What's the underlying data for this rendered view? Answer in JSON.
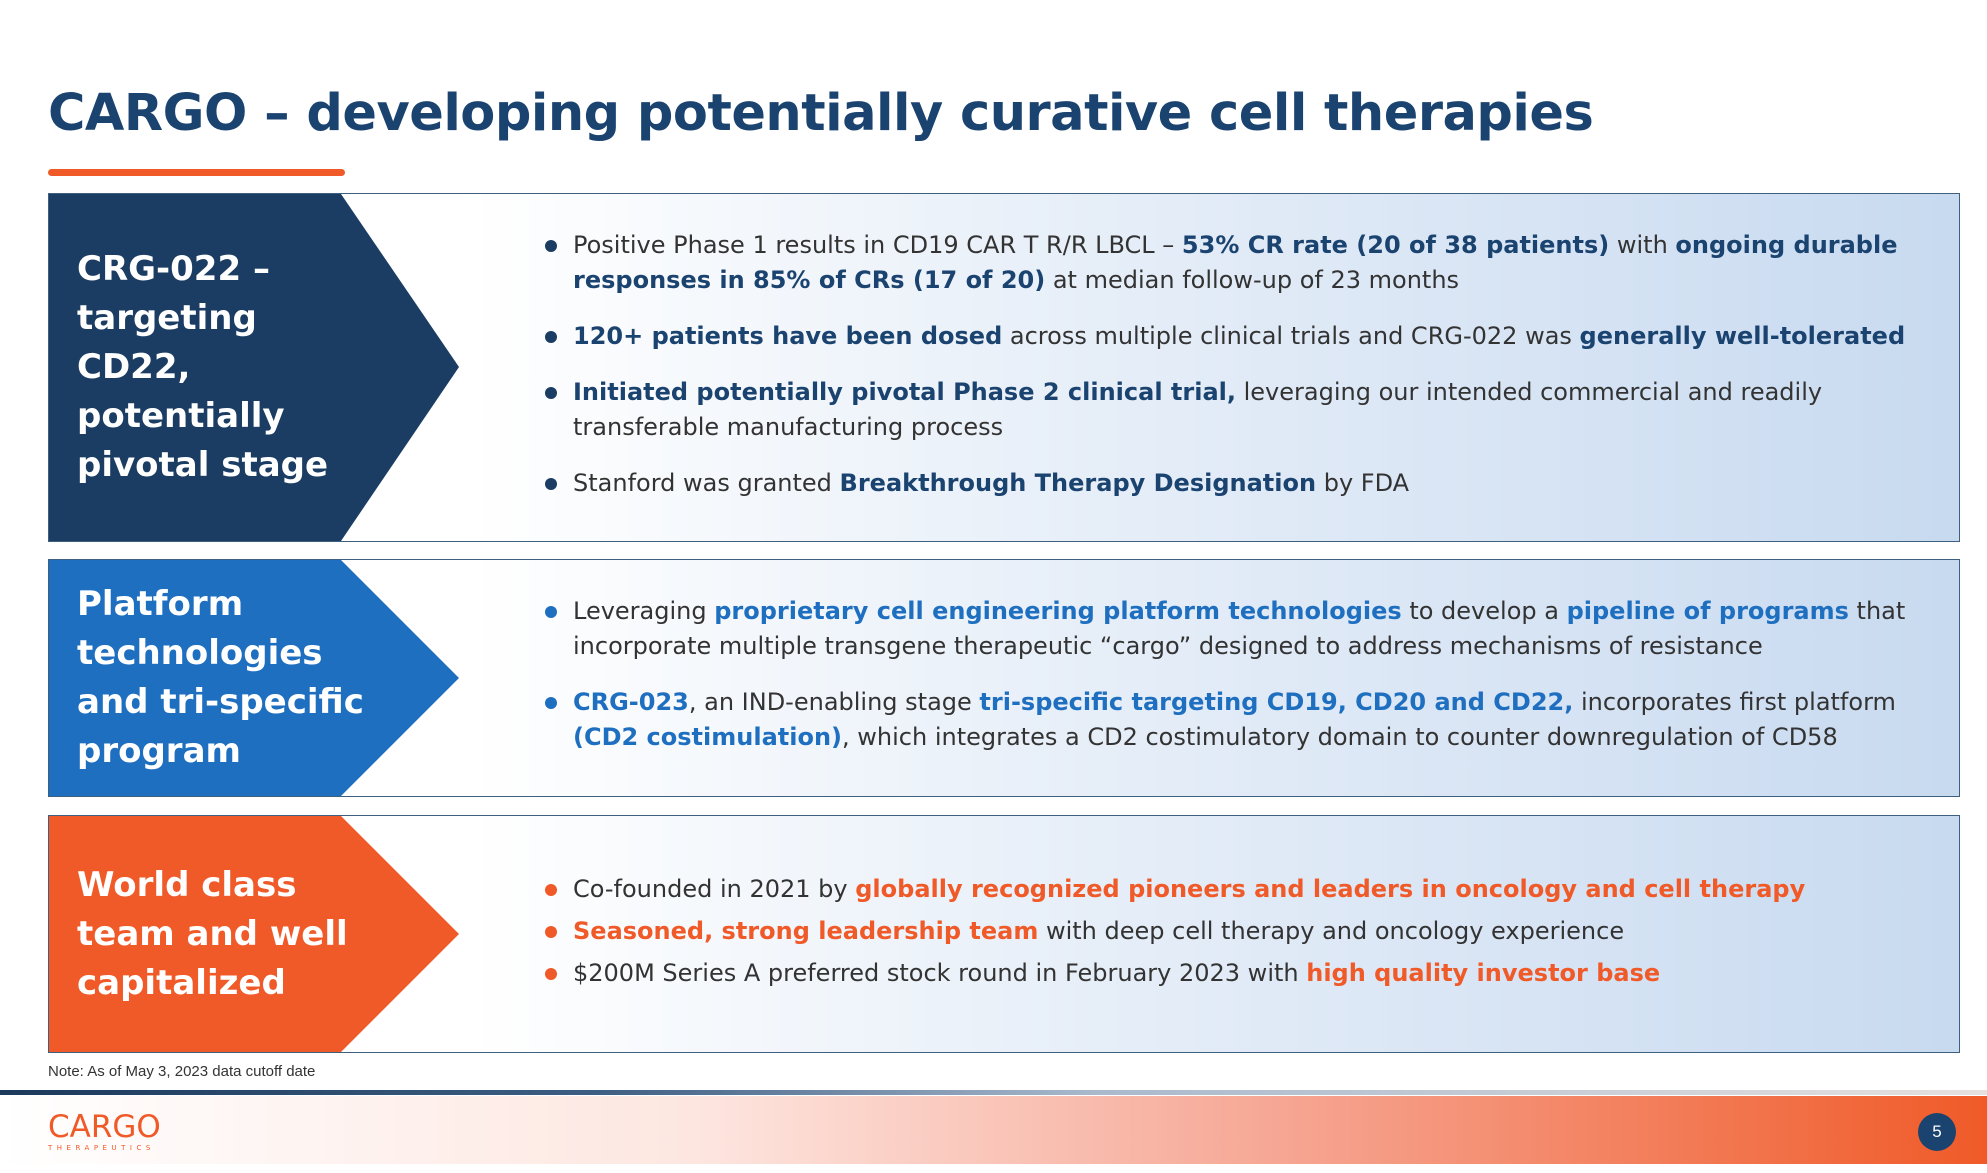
{
  "title": "CARGO – developing potentially curative cell therapies",
  "colors": {
    "navy": "#1b4370",
    "blue": "#1f6fc0",
    "orange": "#f05a28"
  },
  "sections": [
    {
      "label": "CRG-022 – targeting CD22, potentially pivotal stage",
      "bullets": [
        [
          {
            "t": "Positive Phase 1 results in CD19 CAR T R/R LBCL – ",
            "s": ""
          },
          {
            "t": "53% CR rate (20 of 38 patients)",
            "s": "dark"
          },
          {
            "t": " with ",
            "s": ""
          },
          {
            "t": "ongoing durable responses in 85% of CRs (17 of 20)",
            "s": "dark"
          },
          {
            "t": " at median follow-up of 23 months",
            "s": ""
          }
        ],
        [
          {
            "t": "120+ patients have been dosed",
            "s": "dark"
          },
          {
            "t": " across multiple clinical trials and CRG-022 was ",
            "s": ""
          },
          {
            "t": "generally well-tolerated",
            "s": "dark"
          }
        ],
        [
          {
            "t": "Initiated potentially pivotal Phase 2 clinical trial,",
            "s": "dark"
          },
          {
            "t": " leveraging our intended commercial and readily transferable manufacturing process",
            "s": ""
          }
        ],
        [
          {
            "t": "Stanford was granted ",
            "s": ""
          },
          {
            "t": "Breakthrough Therapy Designation",
            "s": "dark"
          },
          {
            "t": " by FDA",
            "s": ""
          }
        ]
      ]
    },
    {
      "label": "Platform technologies and tri-specific program",
      "bullets": [
        [
          {
            "t": "Leveraging ",
            "s": ""
          },
          {
            "t": "proprietary cell engineering platform technologies",
            "s": "blue"
          },
          {
            "t": " to develop a ",
            "s": ""
          },
          {
            "t": "pipeline of programs",
            "s": "blue"
          },
          {
            "t": " that incorporate multiple transgene therapeutic “cargo” designed to address mechanisms of resistance",
            "s": ""
          }
        ],
        [
          {
            "t": "CRG-023",
            "s": "blue"
          },
          {
            "t": ", an IND-enabling stage ",
            "s": ""
          },
          {
            "t": "tri-specific targeting CD19, CD20 and CD22,",
            "s": "blue"
          },
          {
            "t": " incorporates first platform ",
            "s": ""
          },
          {
            "t": "(CD2 costimulation)",
            "s": "blue"
          },
          {
            "t": ", which integrates a CD2 costimulatory domain to counter downregulation of CD58",
            "s": ""
          }
        ]
      ]
    },
    {
      "label": "World class team and well capitalized",
      "bullets": [
        [
          {
            "t": "Co-founded in 2021 by ",
            "s": ""
          },
          {
            "t": "globally recognized pioneers and leaders in oncology and cell therapy",
            "s": "orange"
          }
        ],
        [
          {
            "t": "Seasoned, strong leadership team",
            "s": "orange"
          },
          {
            "t": " with deep cell therapy and oncology experience",
            "s": ""
          }
        ],
        [
          {
            "t": "$200M Series A preferred stock round in February 2023 with ",
            "s": ""
          },
          {
            "t": "high quality investor base",
            "s": "orange"
          }
        ]
      ]
    }
  ],
  "note": "Note: As of May 3, 2023 data cutoff date",
  "logo": {
    "main": "CARGO",
    "sub": "THERAPEUTICS"
  },
  "page_number": "5"
}
